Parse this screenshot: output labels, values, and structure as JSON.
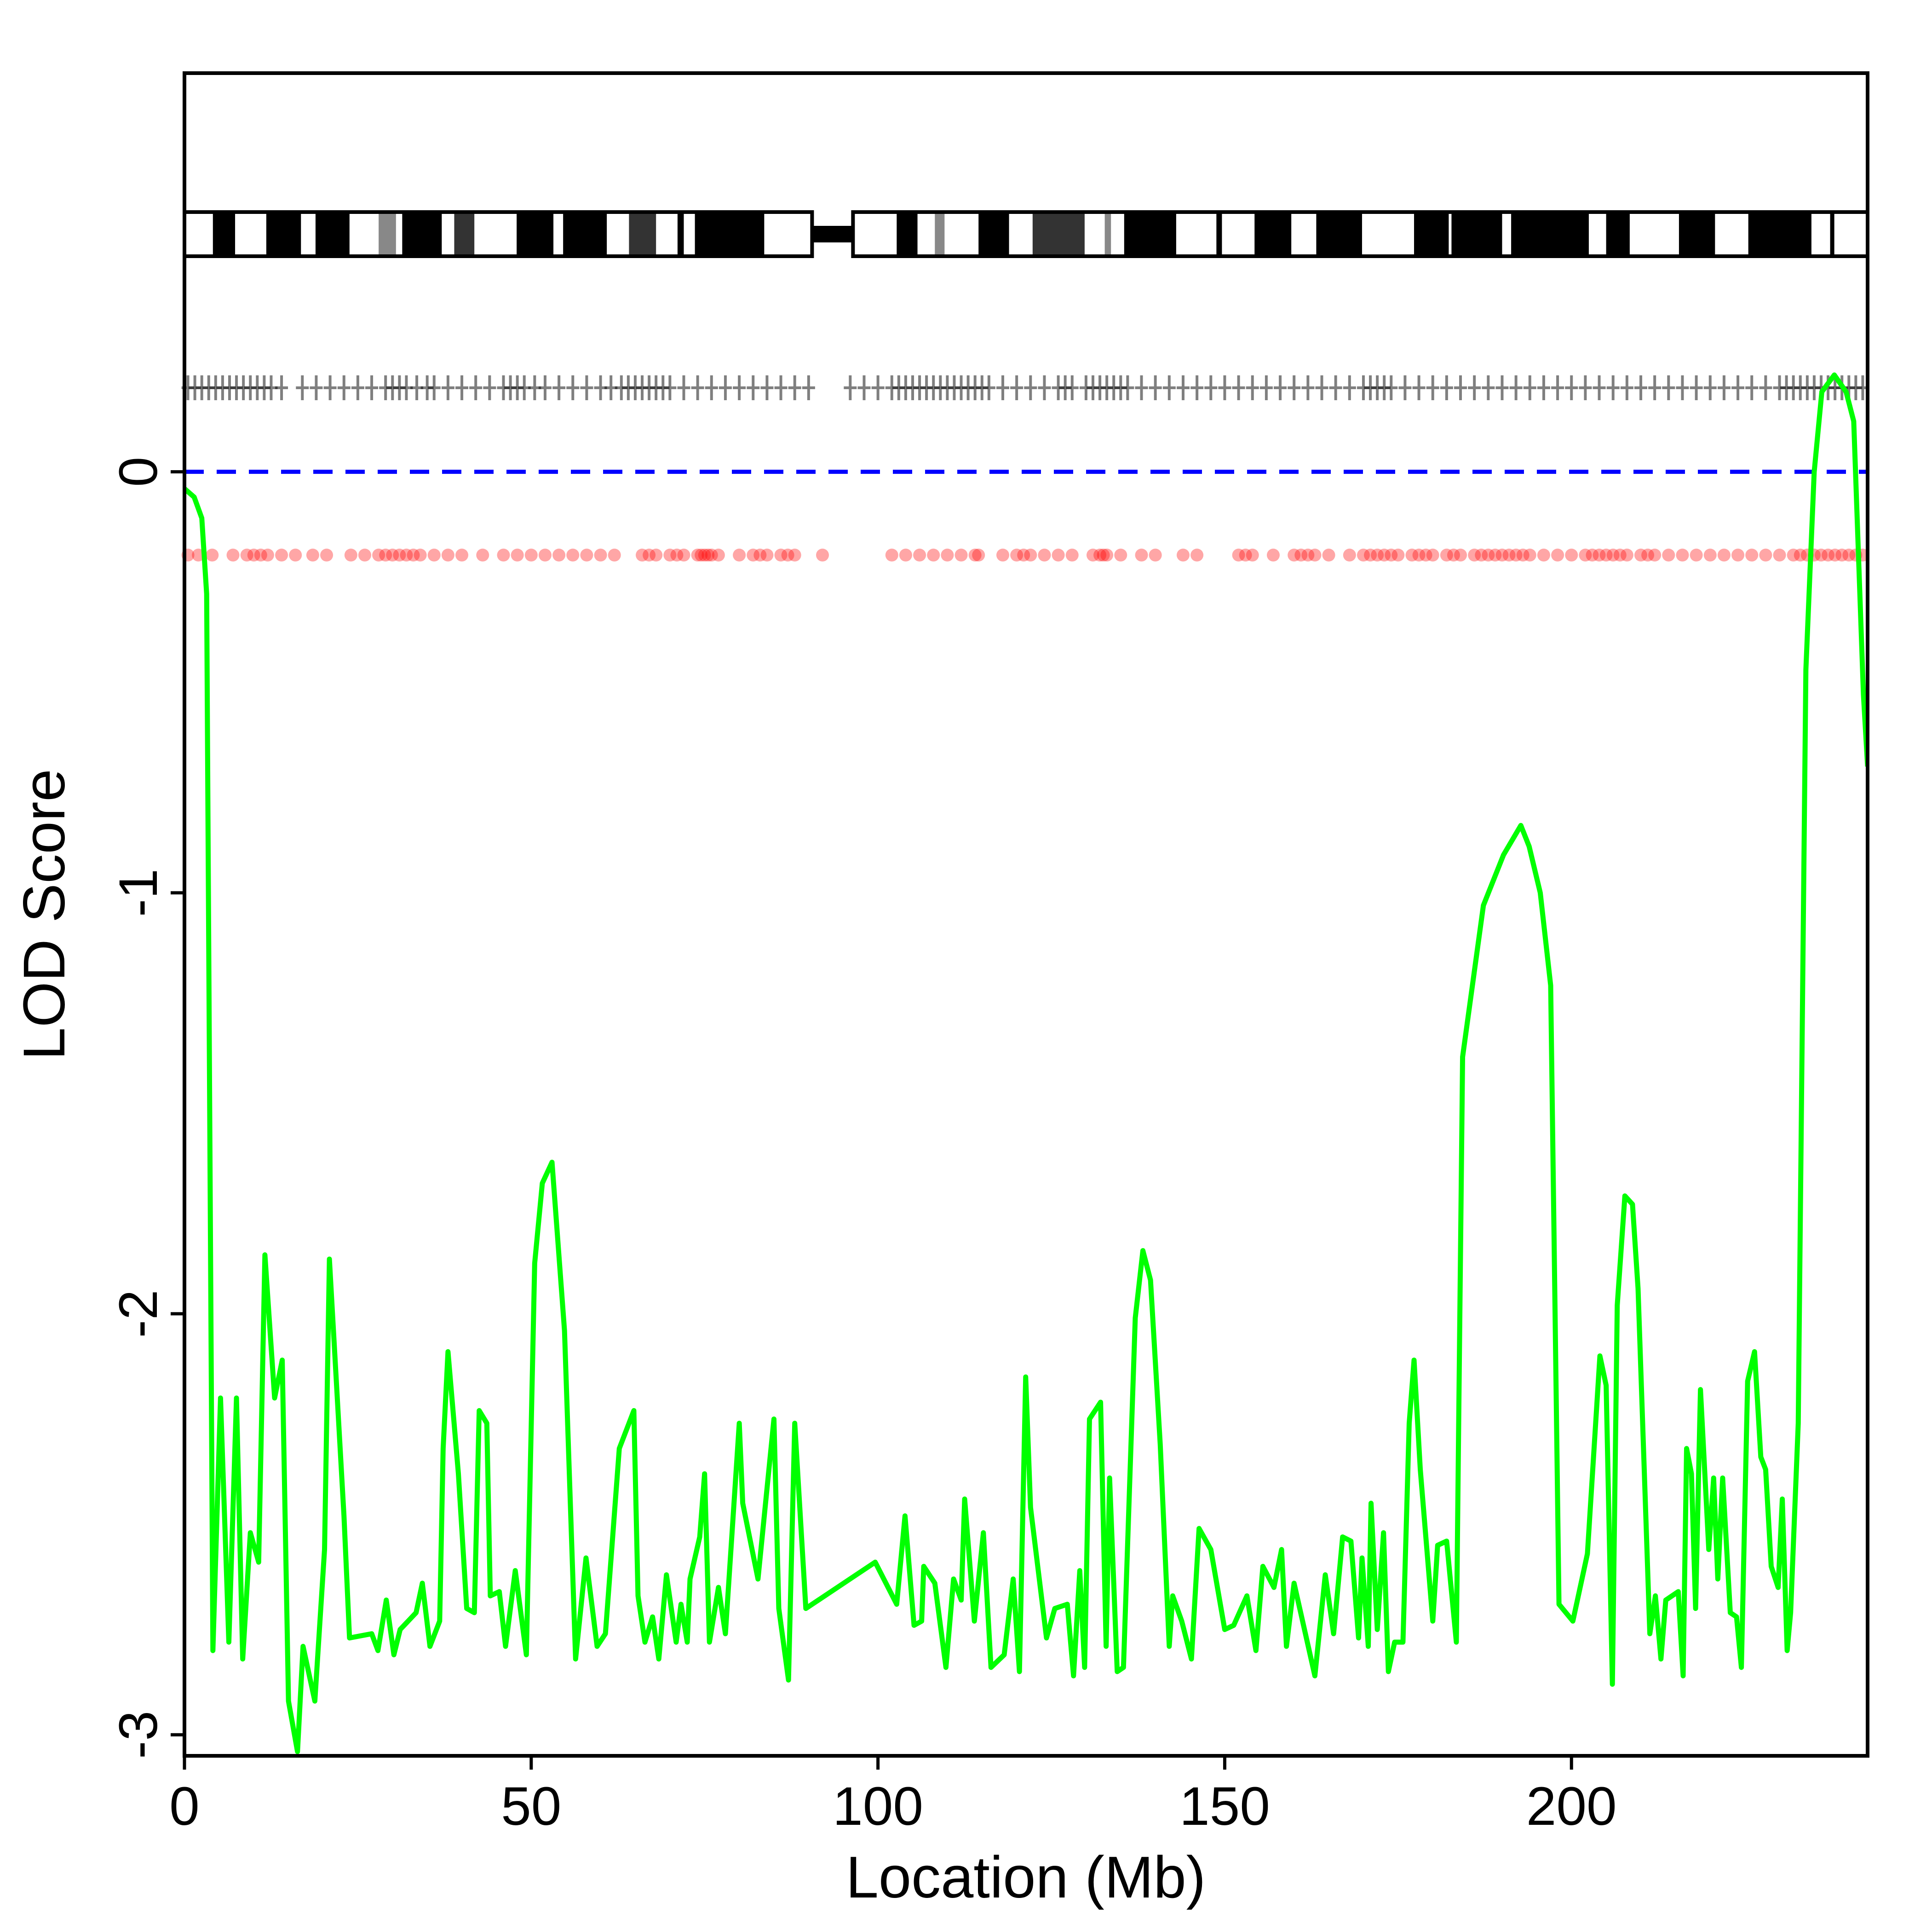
{
  "chart_data": {
    "type": "line",
    "xlabel": "Location (Mb)",
    "ylabel": "LOD Score",
    "xlim": [
      0,
      242.7
    ],
    "ylim": [
      -3.05,
      0.947
    ],
    "xticks": [
      0,
      50,
      100,
      150,
      200
    ],
    "yticks": [
      -3,
      -2,
      -1,
      0
    ],
    "hline": {
      "value": 0,
      "color": "#0000ff"
    },
    "series": [
      {
        "color": "#00ff00",
        "x": [
          0,
          1.4,
          2.5,
          3.2,
          4.1,
          5.2,
          6.4,
          7.5,
          8.4,
          9.5,
          10.7,
          11.6,
          13,
          14.1,
          15,
          16.3,
          17.1,
          18.8,
          20.2,
          20.9,
          23,
          23.8,
          27,
          27.9,
          29.1,
          30.2,
          31.1,
          33.4,
          34.3,
          35.4,
          36.8,
          37.3,
          38,
          39.5,
          40.7,
          41.8,
          42.5,
          43.6,
          44.1,
          45.4,
          46.3,
          47.7,
          49.3,
          50.5,
          51.6,
          53,
          54.8,
          56.4,
          57.9,
          59.5,
          60.7,
          62.7,
          64.8,
          65.4,
          66.4,
          67.5,
          68.4,
          69.5,
          70.9,
          71.6,
          72.5,
          72.9,
          74.3,
          75,
          75.7,
          77,
          78,
          80,
          80.5,
          82.7,
          85,
          85.7,
          87.1,
          88,
          89.6,
          99.6,
          102.7,
          103.9,
          105.2,
          106.3,
          106.6,
          108.2,
          109.8,
          110.9,
          112,
          112.5,
          113.9,
          115.2,
          116.3,
          118.2,
          119.5,
          120.4,
          121.3,
          122,
          124.3,
          125.5,
          127.3,
          128.2,
          129.1,
          129.8,
          130.5,
          132.1,
          132.9,
          133.4,
          134.5,
          135.4,
          137.1,
          138.2,
          139.3,
          140.7,
          142,
          142.5,
          143.8,
          145.2,
          146.3,
          148,
          150,
          151.3,
          153.2,
          154.5,
          155.5,
          157.1,
          158.2,
          158.9,
          160,
          163,
          164.5,
          165.7,
          167,
          168.2,
          169.3,
          169.8,
          170.7,
          171.1,
          172,
          172.9,
          173.6,
          174.5,
          175.7,
          176.6,
          177.3,
          178.2,
          180,
          180.7,
          182,
          183.4,
          184.3,
          187.3,
          190.2,
          192.7,
          193.9,
          195.5,
          197,
          198.2,
          200.2,
          202.3,
          204.1,
          205,
          205.9,
          206.6,
          207.7,
          208.8,
          209.6,
          211.3,
          212.1,
          212.9,
          213.6,
          215.4,
          216.1,
          216.6,
          217.3,
          217.9,
          218.6,
          219.8,
          220.5,
          221.1,
          221.8,
          222.9,
          223.8,
          224.5,
          225.4,
          226.4,
          227.3,
          228,
          228.8,
          229.8,
          230.4,
          231.1,
          231.6,
          232.7,
          233.8,
          235,
          236.1,
          237.9,
          239.6,
          240.7,
          242.1,
          242.7
        ],
        "values": [
          -0.04,
          -0.06,
          -0.11,
          -0.29,
          -2.8,
          -2.2,
          -2.78,
          -2.2,
          -2.82,
          -2.52,
          -2.59,
          -1.86,
          -2.2,
          -2.11,
          -2.92,
          -3.04,
          -2.79,
          -2.92,
          -2.56,
          -1.87,
          -2.48,
          -2.77,
          -2.76,
          -2.8,
          -2.68,
          -2.81,
          -2.75,
          -2.71,
          -2.64,
          -2.79,
          -2.73,
          -2.32,
          -2.09,
          -2.38,
          -2.7,
          -2.71,
          -2.23,
          -2.26,
          -2.67,
          -2.66,
          -2.79,
          -2.61,
          -2.81,
          -1.88,
          -1.69,
          -1.64,
          -2.04,
          -2.82,
          -2.58,
          -2.79,
          -2.76,
          -2.32,
          -2.23,
          -2.67,
          -2.78,
          -2.72,
          -2.82,
          -2.62,
          -2.78,
          -2.69,
          -2.78,
          -2.63,
          -2.53,
          -2.38,
          -2.78,
          -2.65,
          -2.76,
          -2.26,
          -2.45,
          -2.63,
          -2.25,
          -2.7,
          -2.87,
          -2.26,
          -2.7,
          -2.59,
          -2.69,
          -2.48,
          -2.74,
          -2.73,
          -2.6,
          -2.64,
          -2.84,
          -2.63,
          -2.68,
          -2.44,
          -2.73,
          -2.52,
          -2.84,
          -2.81,
          -2.63,
          -2.85,
          -2.15,
          -2.46,
          -2.77,
          -2.7,
          -2.69,
          -2.86,
          -2.61,
          -2.84,
          -2.25,
          -2.21,
          -2.79,
          -2.39,
          -2.85,
          -2.84,
          -2.01,
          -1.85,
          -1.92,
          -2.31,
          -2.79,
          -2.67,
          -2.73,
          -2.82,
          -2.51,
          -2.56,
          -2.75,
          -2.74,
          -2.67,
          -2.8,
          -2.6,
          -2.65,
          -2.56,
          -2.79,
          -2.64,
          -2.86,
          -2.62,
          -2.76,
          -2.53,
          -2.54,
          -2.77,
          -2.58,
          -2.79,
          -2.45,
          -2.75,
          -2.52,
          -2.85,
          -2.78,
          -2.78,
          -2.26,
          -2.11,
          -2.37,
          -2.73,
          -2.55,
          -2.54,
          -2.78,
          -1.39,
          -1.03,
          -0.91,
          -0.84,
          -0.89,
          -1.0,
          -1.22,
          -2.69,
          -2.73,
          -2.57,
          -2.1,
          -2.17,
          -2.88,
          -1.98,
          -1.72,
          -1.74,
          -1.94,
          -2.76,
          -2.67,
          -2.82,
          -2.68,
          -2.66,
          -2.86,
          -2.32,
          -2.38,
          -2.7,
          -2.18,
          -2.56,
          -2.39,
          -2.63,
          -2.39,
          -2.71,
          -2.72,
          -2.84,
          -2.16,
          -2.09,
          -2.34,
          -2.37,
          -2.6,
          -2.65,
          -2.44,
          -2.8,
          -2.71,
          -2.26,
          -0.47,
          0,
          0.19,
          0.23,
          0.19,
          0.12,
          -0.53,
          -0.7
        ]
      }
    ],
    "ideogram": {
      "centromere": [
        90.5,
        96.4
      ],
      "bands": [
        {
          "start": 4.1,
          "end": 7.3,
          "stain": "#000000"
        },
        {
          "start": 11.8,
          "end": 16.8,
          "stain": "#000000"
        },
        {
          "start": 18.9,
          "end": 23.8,
          "stain": "#000000"
        },
        {
          "start": 28.0,
          "end": 30.5,
          "stain": "#888888"
        },
        {
          "start": 31.4,
          "end": 37.1,
          "stain": "#000000"
        },
        {
          "start": 38.9,
          "end": 41.8,
          "stain": "#333333"
        },
        {
          "start": 47.9,
          "end": 53.2,
          "stain": "#000000"
        },
        {
          "start": 54.6,
          "end": 60.9,
          "stain": "#000000"
        },
        {
          "start": 64.1,
          "end": 68.0,
          "stain": "#333333"
        },
        {
          "start": 71.1,
          "end": 72.0,
          "stain": "#000000"
        },
        {
          "start": 73.6,
          "end": 83.6,
          "stain": "#000000"
        },
        {
          "start": 102.7,
          "end": 105.7,
          "stain": "#000000"
        },
        {
          "start": 108.2,
          "end": 109.6,
          "stain": "#888888"
        },
        {
          "start": 114.5,
          "end": 118.9,
          "stain": "#000000"
        },
        {
          "start": 122.3,
          "end": 129.8,
          "stain": "#333333"
        },
        {
          "start": 132.7,
          "end": 133.6,
          "stain": "#888888"
        },
        {
          "start": 135.5,
          "end": 143.0,
          "stain": "#000000"
        },
        {
          "start": 148.8,
          "end": 149.6,
          "stain": "#000000"
        },
        {
          "start": 154.3,
          "end": 159.6,
          "stain": "#000000"
        },
        {
          "start": 163.2,
          "end": 169.8,
          "stain": "#000000"
        },
        {
          "start": 177.3,
          "end": 182.3,
          "stain": "#000000"
        },
        {
          "start": 182.7,
          "end": 190.0,
          "stain": "#000000"
        },
        {
          "start": 191.3,
          "end": 202.5,
          "stain": "#000000"
        },
        {
          "start": 205.0,
          "end": 208.4,
          "stain": "#000000"
        },
        {
          "start": 215.5,
          "end": 220.7,
          "stain": "#000000"
        },
        {
          "start": 225.5,
          "end": 234.6,
          "stain": "#000000"
        },
        {
          "start": 237.3,
          "end": 237.9,
          "stain": "#000000"
        }
      ]
    },
    "markers": {
      "color": "#000000",
      "x": [
        0.5,
        1.5,
        2.5,
        3.5,
        4.5,
        5.5,
        6.5,
        7.5,
        8.5,
        9.5,
        10.5,
        11.5,
        12.5,
        14,
        17,
        19,
        21,
        23,
        25,
        27,
        29,
        30,
        31,
        32,
        33.5,
        35,
        36,
        38,
        40,
        42,
        44,
        46,
        47,
        48,
        49,
        50.5,
        52,
        54,
        56,
        58,
        60,
        61.5,
        63,
        64,
        65,
        66,
        67,
        68,
        69,
        70,
        72,
        74,
        76,
        78,
        80,
        82,
        84,
        86,
        88,
        90,
        96,
        98,
        100,
        102,
        103,
        104,
        105,
        106,
        107,
        108,
        109,
        110,
        111,
        112,
        113,
        114,
        115,
        116,
        118,
        120,
        122,
        124,
        126,
        127,
        128,
        130,
        131,
        132,
        133,
        134,
        135,
        136,
        138,
        140,
        142,
        144,
        146,
        148,
        150,
        152,
        154,
        156,
        158,
        160,
        162,
        164,
        166,
        168,
        170,
        171,
        172,
        173,
        174,
        176,
        178,
        180,
        182,
        184,
        186,
        188,
        190,
        192,
        194,
        196,
        198,
        200,
        202,
        204,
        206,
        208,
        210,
        212,
        214,
        216,
        218,
        220,
        222,
        224,
        226,
        228,
        230,
        231,
        232,
        233,
        234,
        235,
        236,
        237,
        238,
        239,
        240,
        241,
        242
      ]
    },
    "snps": {
      "color": "#ff0000",
      "x": [
        0.5,
        2,
        4,
        7,
        9,
        10,
        11,
        12,
        14,
        16,
        18.5,
        20.5,
        24,
        26,
        28,
        29,
        30,
        31,
        32,
        33,
        34,
        36,
        38,
        40,
        43,
        46,
        48,
        50,
        52,
        54,
        56,
        58,
        60,
        62,
        66,
        67,
        68,
        70,
        71,
        72,
        74,
        74.5,
        75,
        75.5,
        76,
        77,
        80,
        82,
        83,
        84,
        86,
        87,
        88,
        92,
        102,
        104,
        106,
        108,
        110,
        112,
        114,
        114.5,
        118,
        120,
        121,
        122,
        124,
        126,
        128,
        131,
        132,
        132.5,
        133,
        135,
        138,
        140,
        144,
        146,
        152,
        153,
        154,
        157,
        160,
        161,
        162,
        163,
        165,
        168,
        170,
        171,
        172,
        173,
        174,
        175,
        177,
        178,
        179,
        180,
        182,
        183,
        184,
        186,
        187,
        188,
        189,
        190,
        191,
        192,
        193,
        194,
        196,
        198,
        200,
        202,
        203,
        204,
        205,
        206,
        207,
        208,
        210,
        211,
        212,
        214,
        216,
        218,
        220,
        222,
        224,
        226,
        228,
        230,
        232,
        233,
        234,
        235,
        236,
        237,
        238,
        239,
        240,
        241,
        242
      ]
    }
  }
}
